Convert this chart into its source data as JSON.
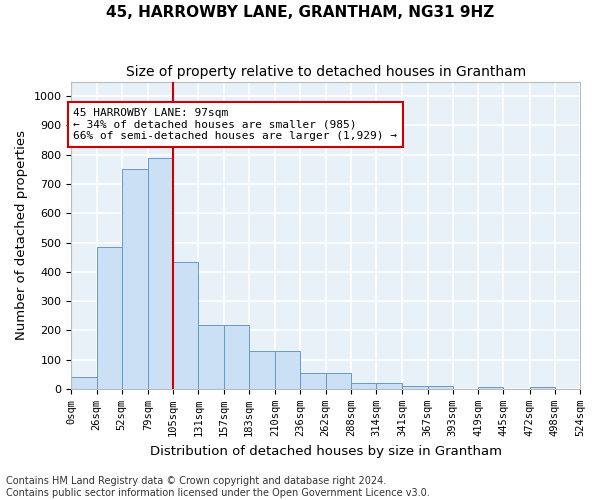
{
  "title": "45, HARROWBY LANE, GRANTHAM, NG31 9HZ",
  "subtitle": "Size of property relative to detached houses in Grantham",
  "xlabel": "Distribution of detached houses by size in Grantham",
  "ylabel": "Number of detached properties",
  "bar_color": "#cce0f5",
  "bar_edge_color": "#6699cc",
  "background_color": "#e8f0f8",
  "grid_color": "#ffffff",
  "bins": [
    0,
    26,
    52,
    79,
    105,
    131,
    157,
    183,
    210,
    236,
    262,
    288,
    314,
    341,
    367,
    393,
    419,
    445,
    472,
    498,
    524
  ],
  "bin_labels": [
    "0sqm",
    "26sqm",
    "52sqm",
    "79sqm",
    "105sqm",
    "131sqm",
    "157sqm",
    "183sqm",
    "210sqm",
    "236sqm",
    "262sqm",
    "288sqm",
    "314sqm",
    "341sqm",
    "367sqm",
    "393sqm",
    "419sqm",
    "445sqm",
    "472sqm",
    "498sqm",
    "524sqm"
  ],
  "values": [
    40,
    485,
    750,
    790,
    435,
    220,
    220,
    128,
    128,
    53,
    53,
    20,
    20,
    10,
    10,
    0,
    8,
    0,
    8,
    0,
    0
  ],
  "vline_x": 105,
  "annotation_text": "45 HARROWBY LANE: 97sqm\n← 34% of detached houses are smaller (985)\n66% of semi-detached houses are larger (1,929) →",
  "annotation_box_color": "#ffffff",
  "annotation_box_edge_color": "#cc0000",
  "vline_color": "#cc0000",
  "footer_line1": "Contains HM Land Registry data © Crown copyright and database right 2024.",
  "footer_line2": "Contains public sector information licensed under the Open Government Licence v3.0.",
  "ylim": [
    0,
    1050
  ],
  "title_fontsize": 11,
  "subtitle_fontsize": 10,
  "axis_label_fontsize": 9.5,
  "tick_fontsize": 7.5,
  "footer_fontsize": 7
}
